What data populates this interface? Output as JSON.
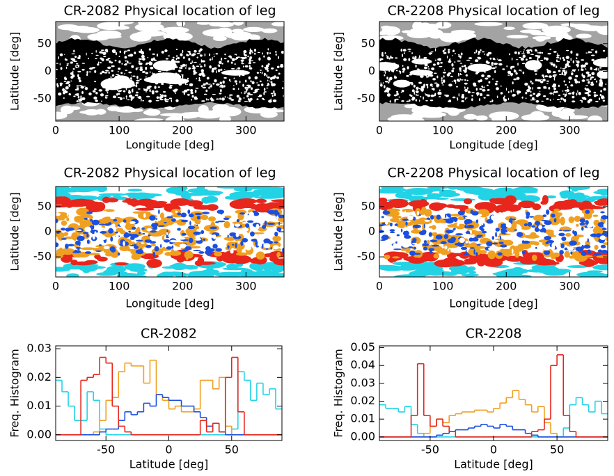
{
  "chart_data": [
    {
      "type": "map",
      "title": "CR-2082 Physical location of leg",
      "xlabel": "Longitude [deg]",
      "ylabel": "Latitude [deg]",
      "xlim": [
        0,
        360
      ],
      "ylim": [
        -90,
        90
      ],
      "xticks": [
        0,
        100,
        200,
        300
      ],
      "yticks": [
        -50,
        0,
        50
      ]
    },
    {
      "type": "map",
      "title": "CR-2208 Physical location of leg",
      "xlabel": "Longitude [deg]",
      "ylabel": "Latitude [deg]",
      "xlim": [
        0,
        360
      ],
      "ylim": [
        -90,
        90
      ],
      "xticks": [
        0,
        100,
        200,
        300
      ],
      "yticks": [
        -50,
        0,
        50
      ]
    },
    {
      "type": "map",
      "title": "CR-2082 Physical location of leg",
      "xlabel": "Longitude [deg]",
      "ylabel": "Latitude [deg]",
      "xlim": [
        0,
        360
      ],
      "ylim": [
        -90,
        90
      ],
      "xticks": [
        0,
        100,
        200,
        300
      ],
      "yticks": [
        -50,
        0,
        50
      ]
    },
    {
      "type": "map",
      "title": "CR-2208 Physical location of leg",
      "xlabel": "Longitude [deg]",
      "ylabel": "Latitude [deg]",
      "xlim": [
        0,
        360
      ],
      "ylim": [
        -90,
        90
      ],
      "xticks": [
        0,
        100,
        200,
        300
      ],
      "yticks": [
        -50,
        0,
        50
      ]
    },
    {
      "type": "histogram",
      "title": "CR-2082",
      "xlabel": "Latitude [deg]",
      "ylabel": "Freq. Histogram",
      "xlim": [
        -90,
        90
      ],
      "ylim": [
        -0.002,
        0.031
      ],
      "xticks": [
        -50,
        0,
        50
      ],
      "yticks": [
        {
          "value": 0,
          "label": "0.00"
        },
        0.01,
        0.02,
        0.03
      ],
      "bins": [
        -90,
        -85,
        -80,
        -75,
        -70,
        -65,
        -60,
        -55,
        -50,
        -45,
        -40,
        -35,
        -30,
        -25,
        -20,
        -15,
        -10,
        -5,
        0,
        5,
        10,
        15,
        20,
        25,
        30,
        35,
        40,
        45,
        50,
        55,
        60,
        65,
        70,
        75,
        80,
        85,
        90
      ],
      "series": [
        {
          "color": "#22d3e6",
          "values": [
            0.019,
            0.015,
            0.01,
            0.005,
            0.005,
            0.015,
            0.012,
            0.002,
            0,
            0,
            0,
            0,
            0,
            0,
            0,
            0,
            0,
            0,
            0,
            0,
            0,
            0,
            0,
            0,
            0,
            0,
            0,
            0,
            0.002,
            0.022,
            0.019,
            0.012,
            0.018,
            0.014,
            0.016,
            0.009
          ]
        },
        {
          "color": "#f0a020",
          "values": [
            0,
            0,
            0,
            0,
            0,
            0,
            0.001,
            0.005,
            0.012,
            0.013,
            0.022,
            0.025,
            0.024,
            0.024,
            0.018,
            0.026,
            0.014,
            0.012,
            0.009,
            0.01,
            0.008,
            0.008,
            0.009,
            0.019,
            0.019,
            0.016,
            0.02,
            0.003,
            0,
            0,
            0,
            0,
            0,
            0,
            0,
            0
          ]
        },
        {
          "color": "#1a4fe0",
          "values": [
            0,
            0,
            0,
            0,
            0,
            0,
            0,
            0.001,
            0.002,
            0.002,
            0.005,
            0.008,
            0.007,
            0.008,
            0.011,
            0.01,
            0.014,
            0.013,
            0.012,
            0.012,
            0.01,
            0.01,
            0.008,
            0.006,
            0.003,
            0.004,
            0.001,
            0,
            0,
            0,
            0,
            0,
            0,
            0,
            0,
            0
          ]
        },
        {
          "color": "#e8261c",
          "values": [
            0,
            0,
            0,
            0,
            0.019,
            0.02,
            0.021,
            0.027,
            0.025,
            0.01,
            0.003,
            0.001,
            0,
            0,
            0,
            0,
            0,
            0,
            0,
            0,
            0,
            0,
            0,
            0.005,
            0.001,
            0.004,
            0.001,
            0.02,
            0.027,
            0.008,
            0,
            0,
            0,
            0,
            0,
            0
          ]
        }
      ]
    },
    {
      "type": "histogram",
      "title": "CR-2208",
      "xlabel": "Latitude [deg]",
      "ylabel": "Freq. Histogram",
      "xlim": [
        -90,
        90
      ],
      "ylim": [
        -0.002,
        0.051
      ],
      "xticks": [
        -50,
        0,
        50
      ],
      "yticks": [
        {
          "value": 0,
          "label": "0.00"
        },
        0.01,
        0.02,
        0.03,
        0.04,
        0.05
      ],
      "bins": [
        -90,
        -85,
        -80,
        -75,
        -70,
        -65,
        -60,
        -55,
        -50,
        -45,
        -40,
        -35,
        -30,
        -25,
        -20,
        -15,
        -10,
        -5,
        0,
        5,
        10,
        15,
        20,
        25,
        30,
        35,
        40,
        45,
        50,
        55,
        60,
        65,
        70,
        75,
        80,
        85,
        90
      ],
      "series": [
        {
          "color": "#22d3e6",
          "values": [
            0.018,
            0.016,
            0.016,
            0.014,
            0.017,
            0.007,
            0.002,
            0,
            0,
            0,
            0,
            0,
            0,
            0,
            0,
            0,
            0,
            0,
            0,
            0,
            0,
            0,
            0,
            0,
            0,
            0,
            0,
            0,
            0,
            0.005,
            0.018,
            0.022,
            0.018,
            0.014,
            0.02,
            0.013
          ]
        },
        {
          "color": "#f0a020",
          "values": [
            0,
            0,
            0,
            0,
            0,
            0,
            0,
            0.002,
            0.006,
            0.01,
            0.008,
            0.012,
            0.013,
            0.014,
            0.014,
            0.015,
            0.015,
            0.014,
            0.016,
            0.019,
            0.022,
            0.026,
            0.021,
            0.018,
            0.014,
            0.017,
            0.008,
            0.002,
            0,
            0,
            0,
            0,
            0,
            0,
            0,
            0
          ]
        },
        {
          "color": "#1a4fe0",
          "values": [
            0,
            0,
            0,
            0,
            0,
            0,
            0,
            0,
            0,
            0.001,
            0.002,
            0.003,
            0.004,
            0.004,
            0.005,
            0.006,
            0.007,
            0.006,
            0.005,
            0.007,
            0.006,
            0.004,
            0.004,
            0.002,
            0.001,
            0,
            0,
            0,
            0,
            0,
            0,
            0,
            0,
            0,
            0,
            0
          ]
        },
        {
          "color": "#e8261c",
          "values": [
            0,
            0,
            0,
            0,
            0,
            0.012,
            0.041,
            0.012,
            0.006,
            0.01,
            0.006,
            0.003,
            0,
            0,
            0,
            0,
            0,
            0,
            0,
            0,
            0,
            0,
            0,
            0,
            0.003,
            0.004,
            0.01,
            0.04,
            0.046,
            0.012,
            0.003,
            0,
            0,
            0,
            0,
            0
          ]
        }
      ]
    }
  ]
}
